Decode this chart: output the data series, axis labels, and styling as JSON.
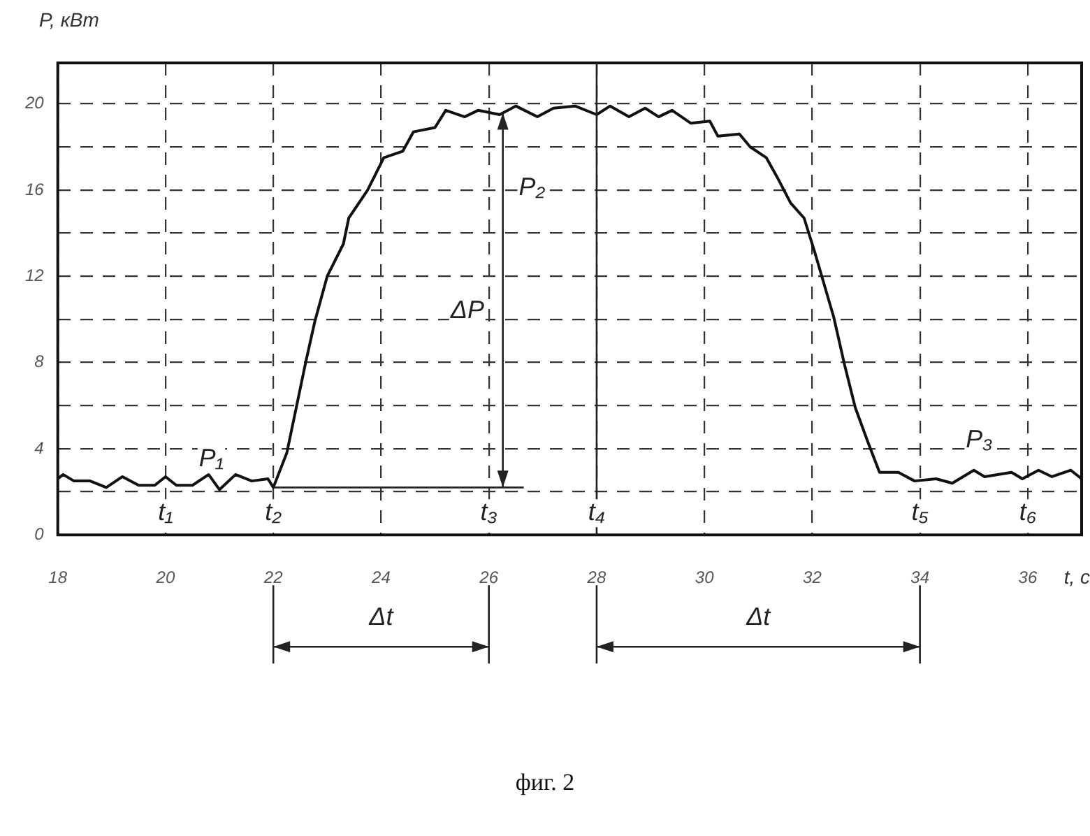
{
  "chart_data": {
    "type": "line",
    "xlabel": "t, c",
    "ylabel": "P, кВт",
    "color": "#111111",
    "x": [
      18.0,
      18.1,
      18.3,
      18.6,
      18.9,
      19.2,
      19.5,
      19.8,
      20.0,
      20.2,
      20.5,
      20.8,
      21.0,
      21.3,
      21.6,
      21.9,
      22.0,
      22.25,
      22.6,
      22.77,
      23.0,
      23.3,
      23.4,
      23.75,
      24.05,
      24.4,
      24.6,
      25.0,
      25.2,
      25.55,
      25.8,
      26.2,
      26.5,
      26.9,
      27.2,
      27.6,
      28.0,
      28.25,
      28.6,
      28.9,
      29.15,
      29.4,
      29.75,
      30.1,
      30.25,
      30.65,
      30.85,
      31.15,
      31.35,
      31.6,
      31.85,
      32.05,
      32.4,
      32.6,
      32.8,
      33.05,
      33.25,
      33.6,
      33.9,
      34.3,
      34.6,
      35.0,
      35.2,
      35.7,
      35.9,
      36.2,
      36.45,
      36.8,
      37.0
    ],
    "values": [
      2.6,
      2.8,
      2.5,
      2.5,
      2.2,
      2.7,
      2.3,
      2.3,
      2.7,
      2.3,
      2.3,
      2.8,
      2.1,
      2.8,
      2.5,
      2.6,
      2.2,
      3.8,
      8,
      9.9,
      12,
      13.5,
      14.7,
      16,
      17.5,
      17.8,
      18.7,
      18.9,
      19.7,
      19.4,
      19.7,
      19.5,
      19.9,
      19.4,
      19.8,
      19.9,
      19.5,
      19.9,
      19.4,
      19.8,
      19.4,
      19.7,
      19.1,
      19.2,
      18.5,
      18.6,
      18,
      17.5,
      16.6,
      15.4,
      14.7,
      13.1,
      10.1,
      7.9,
      5.9,
      4.2,
      2.9,
      2.9,
      2.5,
      2.6,
      2.4,
      3.0,
      2.7,
      2.9,
      2.6,
      3.0,
      2.7,
      3.0,
      2.6
    ],
    "xlim": [
      18,
      37
    ],
    "ylim": [
      0,
      21.9
    ],
    "xticks": [
      18,
      20,
      22,
      24,
      26,
      28,
      30,
      32,
      34,
      36
    ],
    "yticks": [
      0,
      {
        "value": 2,
        "label": null
      },
      4,
      {
        "value": 6,
        "label": null
      },
      8,
      {
        "value": 10,
        "label": null
      },
      12,
      {
        "value": 14,
        "label": null
      },
      16,
      {
        "value": 18,
        "label": null
      },
      20
    ],
    "grid": true,
    "ref_lines": [
      {
        "axis": "x",
        "value": 28
      }
    ],
    "annotations": [
      {
        "text": "P₁",
        "x": 20.85,
        "y": 3.5
      },
      {
        "text": "P₂",
        "x": 26.8,
        "y": 16.1
      },
      {
        "text": "P₃",
        "x": 35.1,
        "y": 4.4
      },
      {
        "text": "ΔP",
        "x": 25.6,
        "y": 10.4
      },
      {
        "text": "t₁",
        "x": 20,
        "y": 1.0
      },
      {
        "text": "t₂",
        "x": 22,
        "y": 1.0
      },
      {
        "text": "t₃",
        "x": 26,
        "y": 1.0
      },
      {
        "text": "t₄",
        "x": 28,
        "y": 1.0
      },
      {
        "text": "t₅",
        "x": 34,
        "y": 1.0
      },
      {
        "text": "t₆",
        "x": 36,
        "y": 1.0
      },
      "Δt",
      "Δt",
      "фиг. 2"
    ]
  }
}
